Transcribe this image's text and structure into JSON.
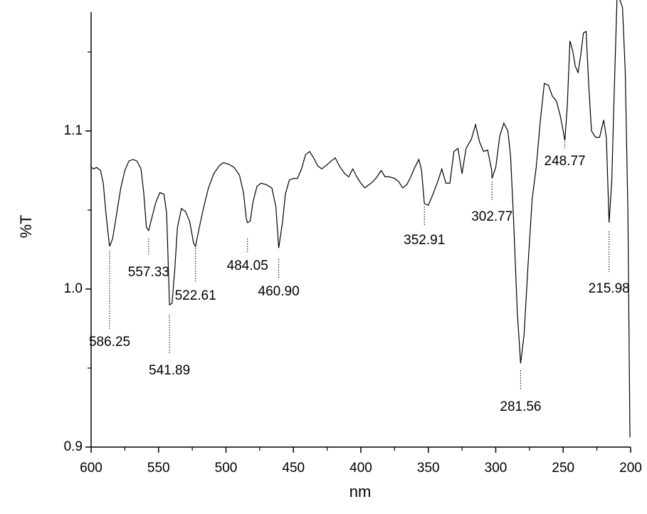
{
  "chart_data": {
    "type": "line",
    "xlabel": "nm",
    "ylabel": "%T",
    "xlim": [
      600,
      200
    ],
    "ylim": [
      0.9,
      1.175
    ],
    "xticks": [
      600,
      550,
      500,
      450,
      400,
      350,
      300,
      250,
      200
    ],
    "xminorticks": [
      575,
      525,
      475,
      425,
      375,
      325,
      275,
      225
    ],
    "yticks": [
      0.9,
      {
        "value": 1,
        "label": "1.0"
      },
      1.1
    ],
    "yminorticks": [
      0.95,
      1.05,
      1.15
    ],
    "series": [
      {
        "color": "#000000",
        "x": [
          600,
          598,
          596,
          593,
          591,
          589,
          587,
          586.25,
          584,
          581,
          578,
          575,
          572,
          569,
          566,
          563,
          561,
          559,
          557.33,
          555,
          552,
          549,
          546,
          544,
          543,
          541.89,
          540,
          538,
          536,
          533,
          530,
          527,
          524,
          522.61,
          520,
          517,
          513,
          509,
          505,
          502,
          498,
          494,
          490,
          487,
          485,
          484.05,
          482,
          480,
          477,
          474,
          470,
          466,
          463,
          460.9,
          458,
          456,
          453,
          450,
          447,
          444,
          441,
          438,
          435,
          432,
          429,
          426,
          422,
          419,
          416,
          412,
          409,
          406,
          403,
          400,
          397,
          394,
          391,
          388,
          385,
          382,
          379,
          375,
          372,
          369,
          366,
          363,
          360,
          357,
          355,
          352.91,
          350,
          347,
          343,
          340,
          337,
          334,
          331,
          328,
          325,
          322,
          318,
          315,
          312,
          309,
          306,
          303,
          302.77,
          300,
          297,
          294,
          291,
          289,
          287,
          284,
          281.56,
          279,
          276,
          273,
          270,
          267,
          264,
          261,
          258,
          255,
          252,
          250,
          248.77,
          247,
          245,
          243,
          241,
          239,
          237,
          235,
          233,
          231,
          229,
          226,
          223,
          220,
          218,
          215.98,
          214,
          212,
          210,
          208,
          206,
          204,
          202,
          200.5
        ],
        "values": [
          1.077,
          1.076,
          1.077,
          1.075,
          1.067,
          1.048,
          1.032,
          1.027,
          1.032,
          1.048,
          1.064,
          1.075,
          1.081,
          1.082,
          1.081,
          1.076,
          1.061,
          1.039,
          1.037,
          1.045,
          1.055,
          1.061,
          1.06,
          1.048,
          1.021,
          0.99,
          0.991,
          1.012,
          1.039,
          1.051,
          1.049,
          1.043,
          1.029,
          1.027,
          1.038,
          1.05,
          1.064,
          1.073,
          1.078,
          1.08,
          1.079,
          1.077,
          1.072,
          1.061,
          1.045,
          1.042,
          1.043,
          1.055,
          1.065,
          1.067,
          1.066,
          1.064,
          1.052,
          1.026,
          1.043,
          1.06,
          1.069,
          1.07,
          1.07,
          1.076,
          1.085,
          1.087,
          1.083,
          1.078,
          1.076,
          1.078,
          1.081,
          1.083,
          1.078,
          1.073,
          1.071,
          1.076,
          1.071,
          1.067,
          1.064,
          1.066,
          1.068,
          1.071,
          1.075,
          1.071,
          1.071,
          1.07,
          1.068,
          1.064,
          1.066,
          1.071,
          1.077,
          1.082,
          1.075,
          1.054,
          1.053,
          1.059,
          1.068,
          1.076,
          1.067,
          1.067,
          1.087,
          1.089,
          1.073,
          1.089,
          1.095,
          1.104,
          1.093,
          1.087,
          1.088,
          1.075,
          1.07,
          1.077,
          1.097,
          1.105,
          1.1,
          1.084,
          1.048,
          0.985,
          0.953,
          0.971,
          1.016,
          1.057,
          1.077,
          1.106,
          1.13,
          1.129,
          1.122,
          1.119,
          1.109,
          1.1,
          1.094,
          1.115,
          1.157,
          1.151,
          1.141,
          1.137,
          1.148,
          1.162,
          1.163,
          1.128,
          1.1,
          1.096,
          1.096,
          1.107,
          1.096,
          1.042,
          1.068,
          1.129,
          1.187,
          1.183,
          1.178,
          1.138,
          1.048,
          0.906
        ]
      }
    ],
    "peaks": [
      586.25,
      557.33,
      541.89,
      522.61,
      484.05,
      {
        "value": 460.9,
        "label": "460.90"
      },
      352.91,
      302.77,
      281.56,
      248.77,
      215.98
    ]
  }
}
